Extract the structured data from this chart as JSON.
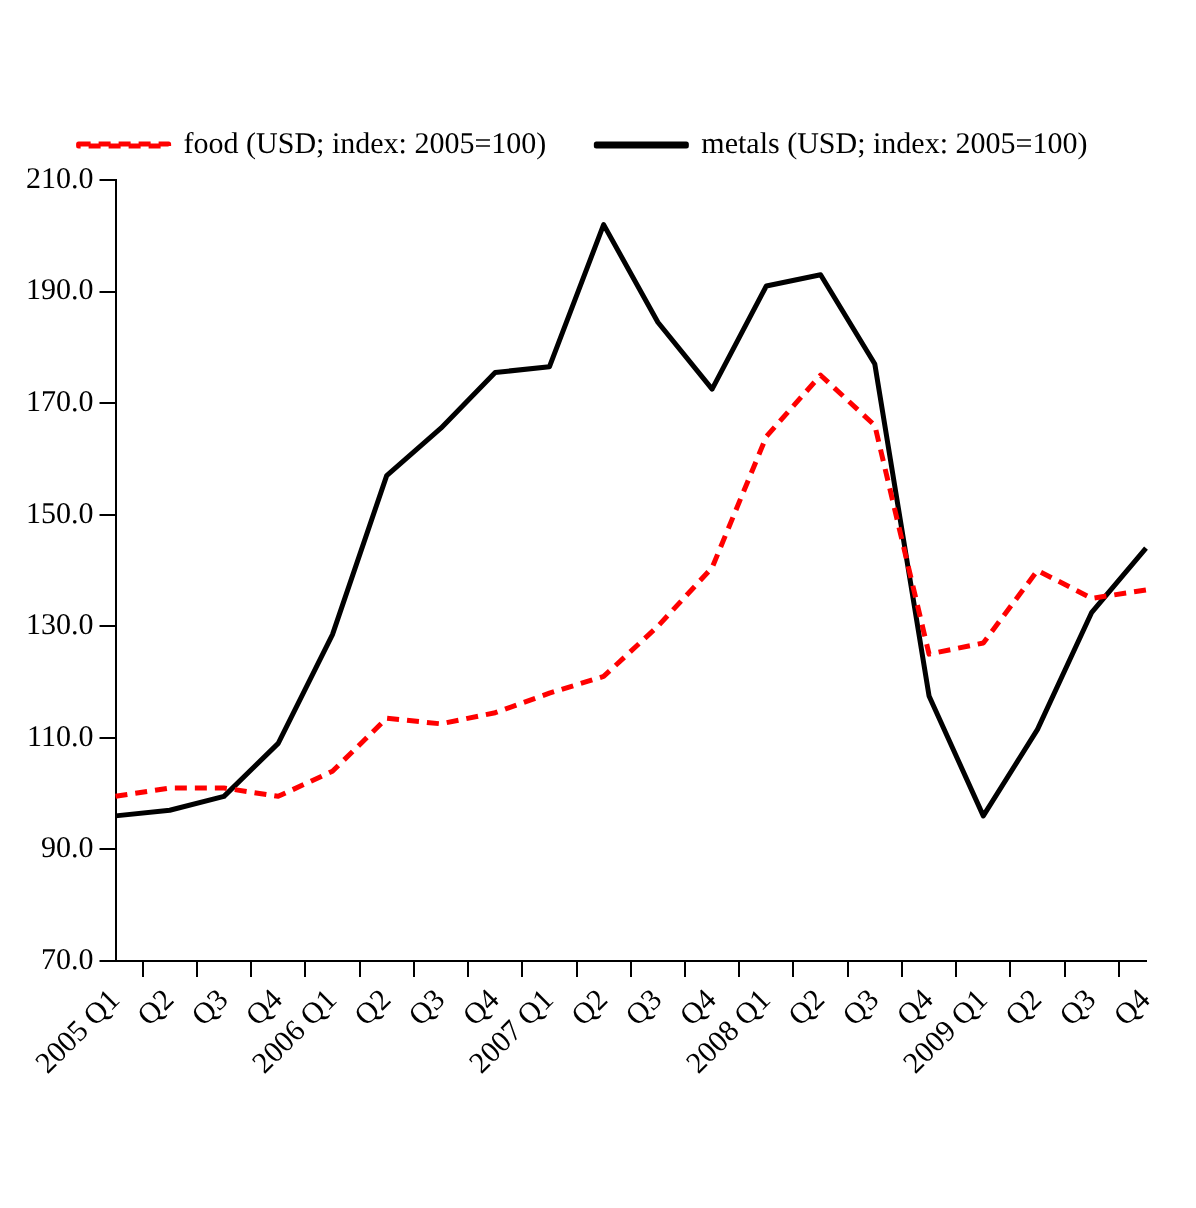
{
  "chart_data": {
    "type": "line",
    "categories": [
      "2005 Q1",
      "Q2",
      "Q3",
      "Q4",
      "2006 Q1",
      "Q2",
      "Q3",
      "Q4",
      "2007 Q1",
      "Q2",
      "Q3",
      "Q4",
      "2008 Q1",
      "Q2",
      "Q3",
      "Q4",
      "2009 Q1",
      "Q2",
      "Q3",
      "Q4"
    ],
    "series": [
      {
        "name": "food (USD; index: 2005=100)",
        "color": "#ff0000",
        "line_style": "dashed",
        "values": [
          99.5,
          101,
          101,
          99.5,
          104,
          113.5,
          112.5,
          114.5,
          118,
          121,
          130,
          140.5,
          164,
          175,
          166,
          125,
          127,
          140,
          135,
          136.5
        ]
      },
      {
        "name": "metals (USD; index: 2005=100)",
        "color": "#000000",
        "line_style": "solid",
        "values": [
          96,
          97,
          99.5,
          109,
          128.5,
          157,
          165.5,
          175.5,
          176.5,
          202,
          184.5,
          172.5,
          191,
          193,
          177,
          117.5,
          96,
          111.5,
          132.5,
          144
        ]
      }
    ],
    "ylim": [
      70,
      210
    ],
    "yticks": [
      {
        "value": 70,
        "label": "70.0"
      },
      {
        "value": 90,
        "label": "90.0"
      },
      {
        "value": 110,
        "label": "110.0"
      },
      {
        "value": 130,
        "label": "130.0"
      },
      {
        "value": 150,
        "label": "150.0"
      },
      {
        "value": 170,
        "label": "170.0"
      },
      {
        "value": 190,
        "label": "190.0"
      },
      {
        "value": 210,
        "label": "210.0"
      }
    ],
    "grid": false,
    "legend": "top",
    "marker": "none"
  }
}
